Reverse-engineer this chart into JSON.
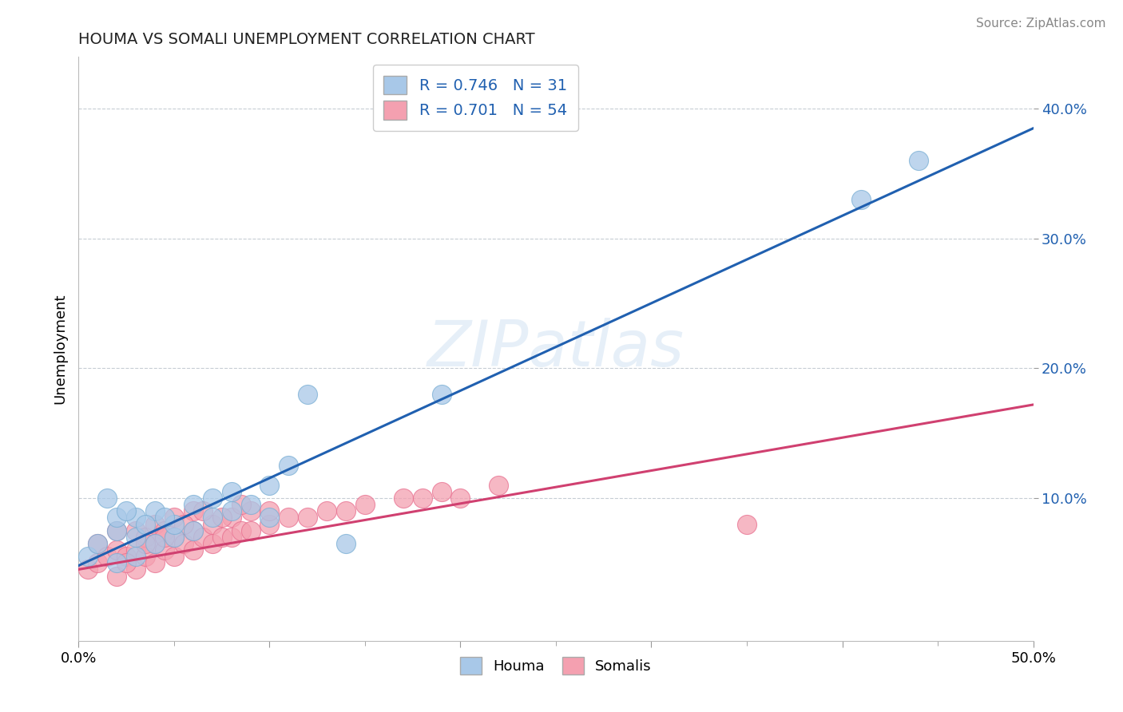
{
  "title": "HOUMA VS SOMALI UNEMPLOYMENT CORRELATION CHART",
  "source": "Source: ZipAtlas.com",
  "ylabel": "Unemployment",
  "xlim": [
    0.0,
    0.5
  ],
  "ylim": [
    -0.01,
    0.44
  ],
  "xticks": [
    0.0,
    0.5
  ],
  "xtick_labels": [
    "0.0%",
    "50.0%"
  ],
  "yticks": [
    0.1,
    0.2,
    0.3,
    0.4
  ],
  "ytick_labels": [
    "10.0%",
    "20.0%",
    "30.0%",
    "40.0%"
  ],
  "houma_color": "#a8c8e8",
  "houma_edge_color": "#7aafd4",
  "somali_color": "#f4a0b0",
  "somali_edge_color": "#e87090",
  "houma_line_color": "#2060b0",
  "somali_line_color": "#d04070",
  "houma_R": 0.746,
  "houma_N": 31,
  "somali_R": 0.701,
  "somali_N": 54,
  "watermark": "ZIPatlas",
  "legend_labels": [
    "Houma",
    "Somalis"
  ],
  "houma_line_x0": 0.0,
  "houma_line_y0": 0.048,
  "houma_line_x1": 0.5,
  "houma_line_y1": 0.385,
  "somali_line_x0": 0.0,
  "somali_line_y0": 0.045,
  "somali_line_x1": 0.5,
  "somali_line_y1": 0.172,
  "houma_scatter_x": [
    0.005,
    0.01,
    0.02,
    0.02,
    0.02,
    0.03,
    0.03,
    0.03,
    0.04,
    0.04,
    0.05,
    0.05,
    0.06,
    0.06,
    0.07,
    0.07,
    0.08,
    0.08,
    0.09,
    0.1,
    0.1,
    0.11,
    0.12,
    0.14,
    0.015,
    0.025,
    0.035,
    0.045,
    0.41,
    0.44,
    0.19
  ],
  "houma_scatter_y": [
    0.055,
    0.065,
    0.05,
    0.075,
    0.085,
    0.055,
    0.07,
    0.085,
    0.065,
    0.09,
    0.07,
    0.08,
    0.075,
    0.095,
    0.085,
    0.1,
    0.09,
    0.105,
    0.095,
    0.11,
    0.085,
    0.125,
    0.18,
    0.065,
    0.1,
    0.09,
    0.08,
    0.085,
    0.33,
    0.36,
    0.18
  ],
  "somali_scatter_x": [
    0.005,
    0.01,
    0.01,
    0.015,
    0.02,
    0.02,
    0.02,
    0.025,
    0.03,
    0.03,
    0.03,
    0.035,
    0.035,
    0.04,
    0.04,
    0.04,
    0.045,
    0.045,
    0.05,
    0.05,
    0.05,
    0.055,
    0.06,
    0.06,
    0.06,
    0.065,
    0.07,
    0.07,
    0.075,
    0.08,
    0.08,
    0.085,
    0.09,
    0.09,
    0.1,
    0.1,
    0.11,
    0.12,
    0.13,
    0.14,
    0.15,
    0.17,
    0.18,
    0.19,
    0.2,
    0.22,
    0.025,
    0.035,
    0.045,
    0.055,
    0.065,
    0.075,
    0.085,
    0.35
  ],
  "somali_scatter_y": [
    0.045,
    0.05,
    0.065,
    0.055,
    0.04,
    0.06,
    0.075,
    0.055,
    0.045,
    0.06,
    0.075,
    0.055,
    0.07,
    0.05,
    0.065,
    0.08,
    0.06,
    0.075,
    0.055,
    0.07,
    0.085,
    0.065,
    0.06,
    0.075,
    0.09,
    0.07,
    0.065,
    0.08,
    0.07,
    0.07,
    0.085,
    0.075,
    0.075,
    0.09,
    0.08,
    0.09,
    0.085,
    0.085,
    0.09,
    0.09,
    0.095,
    0.1,
    0.1,
    0.105,
    0.1,
    0.11,
    0.05,
    0.065,
    0.07,
    0.08,
    0.09,
    0.085,
    0.095,
    0.08
  ]
}
